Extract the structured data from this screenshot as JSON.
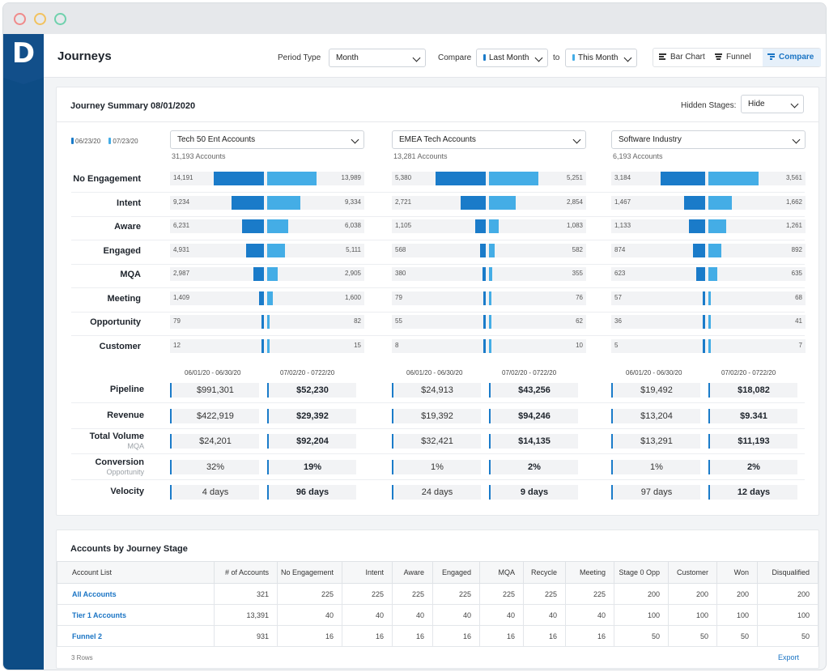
{
  "header": {
    "title": "Journeys",
    "period_type_label": "Period Type",
    "period_type_value": "Month",
    "compare_label": "Compare",
    "compare_from": "Last Month",
    "to_label": "to",
    "compare_to": "This Month",
    "views": [
      {
        "label": "Bar Chart",
        "icon": "bar-chart-icon",
        "active": false
      },
      {
        "label": "Funnel",
        "icon": "funnel-icon",
        "active": false
      },
      {
        "label": "Compare",
        "icon": "compare-icon",
        "active": true
      }
    ]
  },
  "summary": {
    "title": "Journey Summary 08/01/2020",
    "hidden_stages_label": "Hidden Stages:",
    "hidden_stages_value": "Hide",
    "legend": [
      {
        "label": "06/23/20",
        "color": "#1a7bc9"
      },
      {
        "label": "07/23/20",
        "color": "#44ade6"
      }
    ],
    "stages": [
      "No Engagement",
      "Intent",
      "Aware",
      "Engaged",
      "MQA",
      "Meeting",
      "Opportunity",
      "Customer"
    ],
    "segments": [
      {
        "name": "Tech 50 Ent Accounts",
        "accounts": "31,193 Accounts",
        "left": [
          14191,
          9234,
          6231,
          4931,
          2987,
          1409,
          79,
          12
        ],
        "right": [
          13989,
          9334,
          6038,
          5111,
          2905,
          1600,
          82,
          15
        ],
        "left_labels": [
          "14,191",
          "9,234",
          "6,231",
          "4,931",
          "2,987",
          "1,409",
          "79",
          "12"
        ],
        "right_labels": [
          "13,989",
          "9,334",
          "6,038",
          "5,111",
          "2,905",
          "1,600",
          "82",
          "15"
        ],
        "periods": [
          "06/01/20 - 06/30/20",
          "07/02/20 - 0722/20"
        ],
        "metrics": {
          "pipeline": [
            "$991,301",
            "$52,230"
          ],
          "revenue": [
            "$422,919",
            "$29,392"
          ],
          "volume": [
            "$24,201",
            "$92,204"
          ],
          "conversion": [
            "32%",
            "19%"
          ],
          "velocity": [
            "4 days",
            "96 days"
          ]
        }
      },
      {
        "name": "EMEA Tech Accounts",
        "accounts": "13,281 Accounts",
        "left": [
          5380,
          2721,
          1105,
          568,
          380,
          79,
          55,
          8
        ],
        "right": [
          5251,
          2854,
          1083,
          582,
          355,
          76,
          62,
          10
        ],
        "left_labels": [
          "5,380",
          "2,721",
          "1,105",
          "568",
          "380",
          "79",
          "55",
          "8"
        ],
        "right_labels": [
          "5,251",
          "2,854",
          "1,083",
          "582",
          "355",
          "76",
          "62",
          "10"
        ],
        "periods": [
          "06/01/20 - 06/30/20",
          "07/02/20 - 0722/20"
        ],
        "metrics": {
          "pipeline": [
            "$24,913",
            "$43,256"
          ],
          "revenue": [
            "$19,392",
            "$94,246"
          ],
          "volume": [
            "$32,421",
            "$14,135"
          ],
          "conversion": [
            "1%",
            "2%"
          ],
          "velocity": [
            "24 days",
            "9 days"
          ]
        }
      },
      {
        "name": "Software Industry",
        "accounts": "6,193 Accounts",
        "left": [
          3184,
          1467,
          1133,
          874,
          623,
          57,
          36,
          5
        ],
        "right": [
          3561,
          1662,
          1261,
          892,
          635,
          68,
          41,
          7
        ],
        "left_labels": [
          "3,184",
          "1,467",
          "1,133",
          "874",
          "623",
          "57",
          "36",
          "5"
        ],
        "right_labels": [
          "3,561",
          "1,662",
          "1,261",
          "892",
          "635",
          "68",
          "41",
          "7"
        ],
        "periods": [
          "06/01/20 - 06/30/20",
          "07/02/20 - 0722/20"
        ],
        "metrics": {
          "pipeline": [
            "$19,492",
            "$18,082"
          ],
          "revenue": [
            "$13,204",
            "$9.341"
          ],
          "volume": [
            "$13,291",
            "$11,193"
          ],
          "conversion": [
            "1%",
            "2%"
          ],
          "velocity": [
            "97 days",
            "12 days"
          ]
        }
      }
    ],
    "metric_rows": [
      {
        "key": "pipeline",
        "label": "Pipeline",
        "sub": ""
      },
      {
        "key": "revenue",
        "label": "Revenue",
        "sub": ""
      },
      {
        "key": "volume",
        "label": "Total Volume",
        "sub": "MQA"
      },
      {
        "key": "conversion",
        "label": "Conversion",
        "sub": "Opportunity"
      },
      {
        "key": "velocity",
        "label": "Velocity",
        "sub": ""
      }
    ]
  },
  "accounts_table": {
    "title": "Accounts by Journey Stage",
    "columns": [
      "Account List",
      "# of Accounts",
      "No Engagement",
      "Intent",
      "Aware",
      "Engaged",
      "MQA",
      "Recycle",
      "Meeting",
      "Stage 0 Opp",
      "Customer",
      "Won",
      "Disqualified"
    ],
    "rows": [
      [
        "All Accounts",
        "321",
        "225",
        "225",
        "225",
        "225",
        "225",
        "225",
        "225",
        "200",
        "200",
        "200",
        "200"
      ],
      [
        "Tier 1 Accounts",
        "13,391",
        "40",
        "40",
        "40",
        "40",
        "40",
        "40",
        "40",
        "100",
        "100",
        "100",
        "100"
      ],
      [
        "Funnel 2",
        "931",
        "16",
        "16",
        "16",
        "16",
        "16",
        "16",
        "16",
        "50",
        "50",
        "50",
        "50"
      ]
    ],
    "row_count": "3 Rows",
    "export_label": "Export"
  }
}
